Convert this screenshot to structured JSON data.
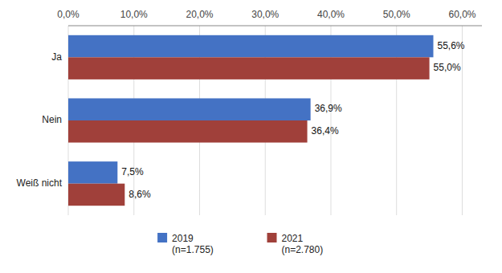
{
  "chart_data": {
    "type": "bar",
    "orientation": "horizontal",
    "categories": [
      "Ja",
      "Nein",
      "Weiß nicht"
    ],
    "series": [
      {
        "name": "2019\n(n=1.755)",
        "color": "#4472C4",
        "values": [
          55.6,
          36.9,
          7.5
        ],
        "value_labels": [
          "55,6%",
          "36,9%",
          "7,5%"
        ]
      },
      {
        "name": "2021\n(n=2.780)",
        "color": "#A0403A",
        "values": [
          55.0,
          36.4,
          8.6
        ],
        "value_labels": [
          "55,0%",
          "36,4%",
          "8,6%"
        ]
      }
    ],
    "xlim": [
      0,
      63
    ],
    "xticks": [
      {
        "value": 0,
        "label": "0,0%"
      },
      {
        "value": 10,
        "label": "10,0%"
      },
      {
        "value": 20,
        "label": "20,0%"
      },
      {
        "value": 30,
        "label": "30,0%"
      },
      {
        "value": 40,
        "label": "40,0%"
      },
      {
        "value": 50,
        "label": "50,0%"
      },
      {
        "value": 60,
        "label": "60,0%"
      }
    ],
    "grid": true,
    "data_labels": true,
    "legend": "bottom"
  }
}
